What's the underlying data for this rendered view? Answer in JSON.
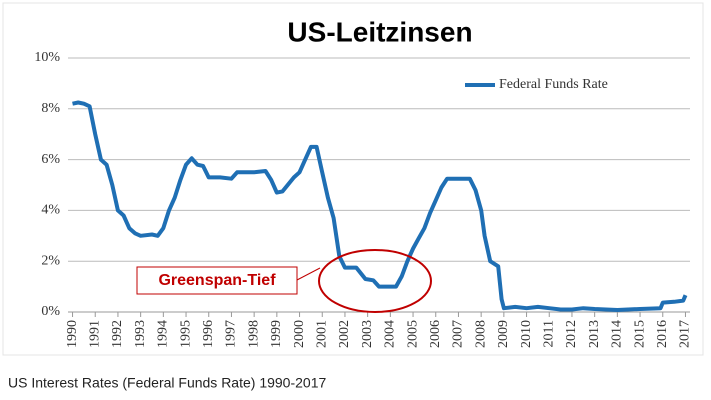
{
  "chart_data": {
    "type": "line",
    "title": "US-Leitzinsen",
    "caption": "US Interest Rates (Federal Funds Rate) 1990-2017",
    "annotations": [
      {
        "text": "Greenspan-Tief",
        "color": "#c00000"
      }
    ],
    "legend": "upper right",
    "grid": true,
    "x": [
      1990,
      1990.25,
      1990.5,
      1990.75,
      1991,
      1991.25,
      1991.5,
      1991.75,
      1992,
      1992.25,
      1992.5,
      1992.75,
      1993,
      1993.5,
      1993.75,
      1994,
      1994.25,
      1994.5,
      1994.75,
      1995,
      1995.25,
      1995.5,
      1995.75,
      1996,
      1996.5,
      1997,
      1997.25,
      1997.75,
      1998,
      1998.5,
      1998.75,
      1999,
      1999.25,
      1999.75,
      2000,
      2000.25,
      2000.5,
      2000.75,
      2001,
      2001.25,
      2001.5,
      2001.75,
      2002,
      2002.5,
      2002.9,
      2003.25,
      2003.5,
      2004,
      2004.25,
      2004.5,
      2004.75,
      2005,
      2005.25,
      2005.5,
      2005.75,
      2006,
      2006.25,
      2006.5,
      2007,
      2007.5,
      2007.75,
      2008,
      2008.15,
      2008.4,
      2008.75,
      2008.9,
      2009,
      2009.5,
      2010,
      2010.5,
      2011,
      2011.5,
      2012,
      2012.5,
      2013,
      2013.5,
      2014,
      2015,
      2015.9,
      2016,
      2016.5,
      2016.9,
      2017
    ],
    "series": [
      {
        "name": "Federal Funds Rate",
        "color": "#1f6fb4",
        "values": [
          8.2,
          8.25,
          8.2,
          8.1,
          7.0,
          6.0,
          5.8,
          5.0,
          4.0,
          3.8,
          3.3,
          3.1,
          3.0,
          3.05,
          3.0,
          3.3,
          4.0,
          4.5,
          5.2,
          5.8,
          6.05,
          5.8,
          5.75,
          5.3,
          5.3,
          5.25,
          5.5,
          5.5,
          5.5,
          5.55,
          5.2,
          4.7,
          4.75,
          5.3,
          5.5,
          6.0,
          6.5,
          6.5,
          5.5,
          4.5,
          3.7,
          2.2,
          1.75,
          1.75,
          1.3,
          1.25,
          1.0,
          1.0,
          1.0,
          1.4,
          2.0,
          2.5,
          2.9,
          3.3,
          3.9,
          4.4,
          4.9,
          5.25,
          5.25,
          5.25,
          4.8,
          4.0,
          3.0,
          2.0,
          1.8,
          0.5,
          0.15,
          0.2,
          0.15,
          0.2,
          0.15,
          0.1,
          0.1,
          0.15,
          0.12,
          0.1,
          0.08,
          0.12,
          0.15,
          0.37,
          0.4,
          0.45,
          0.66
        ]
      }
    ],
    "xlim": [
      1989.8,
      2017.2
    ],
    "xticks": [
      1990,
      1991,
      1992,
      1993,
      1994,
      1995,
      1996,
      1997,
      1998,
      1999,
      2000,
      2001,
      2002,
      2003,
      2004,
      2005,
      2006,
      2007,
      2008,
      2009,
      2010,
      2011,
      2012,
      2013,
      2014,
      2015,
      2016,
      2017
    ],
    "ylim": [
      0,
      10
    ],
    "yticks": [
      {
        "value": 0,
        "label": "0%"
      },
      {
        "value": 2,
        "label": "2%"
      },
      {
        "value": 4,
        "label": "4%"
      },
      {
        "value": 6,
        "label": "6%"
      },
      {
        "value": 8,
        "label": "8%"
      },
      {
        "value": 10,
        "label": "10%"
      }
    ]
  }
}
